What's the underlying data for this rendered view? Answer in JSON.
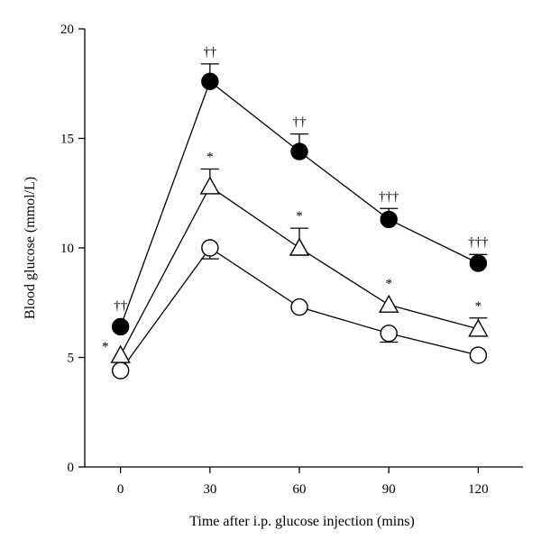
{
  "chart_data": {
    "type": "line",
    "xlabel": "Time after i.p. glucose injection (mins)",
    "ylabel": "Blood glucose (mmol/L)",
    "x": [
      0,
      30,
      60,
      90,
      120
    ],
    "x_ticks": [
      "0",
      "30",
      "60",
      "90",
      "120"
    ],
    "y_ticks": [
      "0",
      "5",
      "10",
      "15",
      "20"
    ],
    "xlim": [
      -12,
      135
    ],
    "ylim": [
      0,
      20
    ],
    "grid": false,
    "legend": "none",
    "series": [
      {
        "marker": "filled-circle",
        "values": [
          6.4,
          17.6,
          14.4,
          11.3,
          9.3
        ],
        "error": [
          0,
          0.8,
          0.8,
          0.5,
          0.4
        ],
        "error_direction": "up",
        "annotations": [
          "††",
          "††",
          "††",
          "†††",
          "†††"
        ]
      },
      {
        "marker": "open-triangle",
        "values": [
          5.1,
          12.8,
          10.0,
          7.4,
          6.3
        ],
        "error": [
          0,
          0.8,
          0.9,
          0,
          0.5
        ],
        "error_direction": "up",
        "annotations": [
          "*",
          "*",
          "*",
          "*",
          "*"
        ]
      },
      {
        "marker": "open-circle",
        "values": [
          4.4,
          10.0,
          7.3,
          6.1,
          5.1
        ],
        "error": [
          0,
          0.5,
          0,
          0.4,
          0
        ],
        "error_direction": "down",
        "annotations": [
          "",
          "",
          "",
          "",
          ""
        ]
      }
    ]
  }
}
